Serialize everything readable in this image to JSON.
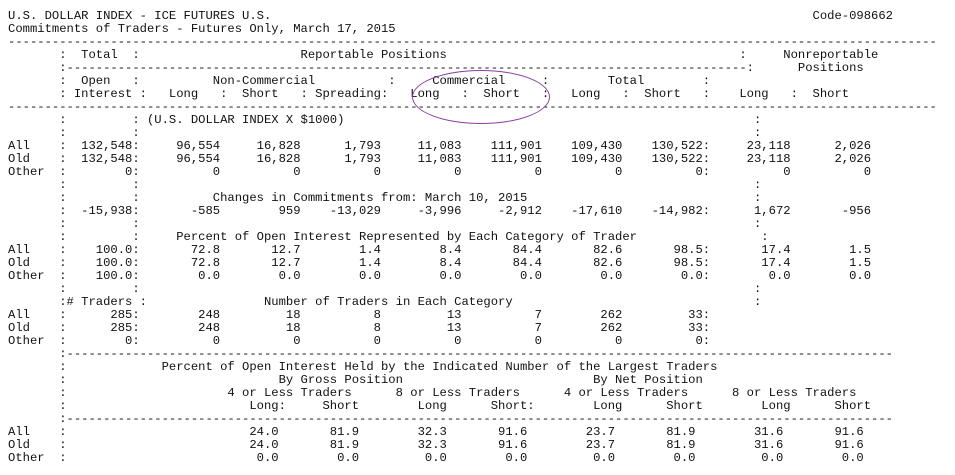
{
  "header": {
    "title": "U.S. DOLLAR INDEX - ICE FUTURES U.S.",
    "code": "Code-098662",
    "subtitle": "Commitments of Traders - Futures Only, March 17, 2015"
  },
  "lines": [
    "U.S. DOLLAR INDEX - ICE FUTURES U.S.                                                                          Code-098662",
    "Commitments of Traders - Futures Only, March 17, 2015",
    "-------------------------------------------------------------------------------------------------------------------------------",
    "       :  Total  :                      Reportable Positions                                        :     Nonreportable",
    "       :---------------------------------------------------------------------------------------------:      Positions",
    "       :  Open   :          Non-Commercial          :     Commercial     :        Total        :",
    "       : Interest :   Long   :  Short   : Spreading:   Long   :  Short   :   Long   :  Short   :    Long   :  Short",
    "-------------------------------------------------------------------------------------------------------------------------------",
    "       :         : (U.S. DOLLAR INDEX X $1000)                                                        :",
    "       :         :                                                                                    :",
    "All    :  132,548:     96,554     16,828      1,793     11,083    111,901    109,430    130,522:     23,118      2,026",
    "Old    :  132,548:     96,554     16,828      1,793     11,083    111,901    109,430    130,522:     23,118      2,026",
    "Other  :        0:          0          0          0          0          0          0          0:          0          0",
    "       :         :                                                                                    :",
    "       :         :          Changes in Commitments from: March 10, 2015                               :",
    "       :  -15,938:       -585        959    -13,029     -3,996     -2,912    -17,610    -14,982:      1,672       -956",
    "       :         :                                                                                    :",
    "       :         :     Percent of Open Interest Represented by Each Category of Trader                 :",
    "All    :    100.0:       72.8       12.7        1.4        8.4       84.4       82.6       98.5:       17.4        1.5",
    "Old    :    100.0:       72.8       12.7        1.4        8.4       84.4       82.6       98.5:       17.4        1.5",
    "Other  :    100.0:        0.0        0.0        0.0        0.0        0.0        0.0        0.0:        0.0        0.0",
    "       :         :                                                                                    :",
    "       :# Traders :                Number of Traders in Each Category                                 :",
    "All    :      285:        248         18          8         13          7        262         33:",
    "Old    :      285:        248         18          8         13          7        262         33:",
    "Other  :        0:          0          0          0          0          0          0          0:",
    "       :-----------------------------------------------------------------------------------------------------------------",
    "       :             Percent of Open Interest Held by the Indicated Number of the Largest Traders",
    "       :                             By Gross Position                          By Net Position",
    "       :                      4 or Less Traders      8 or Less Traders      4 or Less Traders      8 or Less Traders",
    "       :                         Long:     Short        Long      Short:        Long      Short        Long      Short",
    "       :-----------------------------------------------------------------------------------------------------------------",
    "All    :                         24.0       81.9        32.3       91.6        23.7       81.9        31.6       91.6",
    "Old    :                         24.0       81.9        32.3       91.6        23.7       81.9        31.6       91.6",
    "Other  :                          0.0        0.0         0.0        0.0         0.0        0.0         0.0        0.0"
  ]
}
